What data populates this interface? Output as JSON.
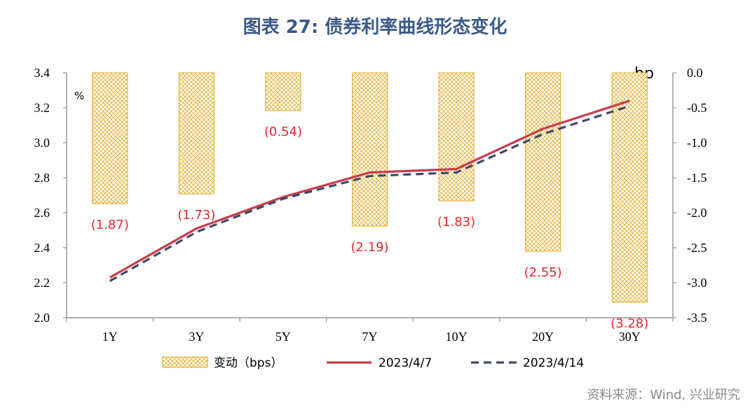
{
  "title": "图表 27: 债券利率曲线形态变化",
  "source": "资料来源：Wind, 兴业研究",
  "colors": {
    "bar_fill": "#f5d88a",
    "bar_border": "#e0a820",
    "line_a": "#c83c4b",
    "line_b": "#3d4a66",
    "label": "#e8262b",
    "axis": "#808080"
  },
  "chart_data": {
    "type": "bar+line",
    "categories": [
      "1Y",
      "3Y",
      "5Y",
      "7Y",
      "10Y",
      "20Y",
      "30Y"
    ],
    "left_axis": {
      "unit": "%",
      "ylim": [
        2.0,
        3.4
      ],
      "ticks": [
        "2.0",
        "2.2",
        "2.4",
        "2.6",
        "2.8",
        "3.0",
        "3.2",
        "3.4"
      ]
    },
    "right_axis": {
      "unit": "bp",
      "ylim": [
        -3.5,
        0.0
      ],
      "ticks": [
        "-3.5",
        "-3.0",
        "-2.5",
        "-2.0",
        "-1.5",
        "-1.0",
        "-0.5",
        "0.0"
      ]
    },
    "bars": {
      "name": "变动（bps）",
      "values": [
        -1.87,
        -1.73,
        -0.54,
        -2.19,
        -1.83,
        -2.55,
        -3.28
      ],
      "labels": [
        "(1.87)",
        "(1.73)",
        "(0.54)",
        "(2.19)",
        "(1.83)",
        "(2.55)",
        "(3.28)"
      ]
    },
    "series": [
      {
        "name": "2023/4/7",
        "values": [
          2.23,
          2.51,
          2.69,
          2.83,
          2.85,
          3.08,
          3.24
        ]
      },
      {
        "name": "2023/4/14",
        "values": [
          2.21,
          2.49,
          2.68,
          2.81,
          2.83,
          3.05,
          3.21
        ]
      }
    ],
    "legend_position": "bottom",
    "grid": false
  }
}
